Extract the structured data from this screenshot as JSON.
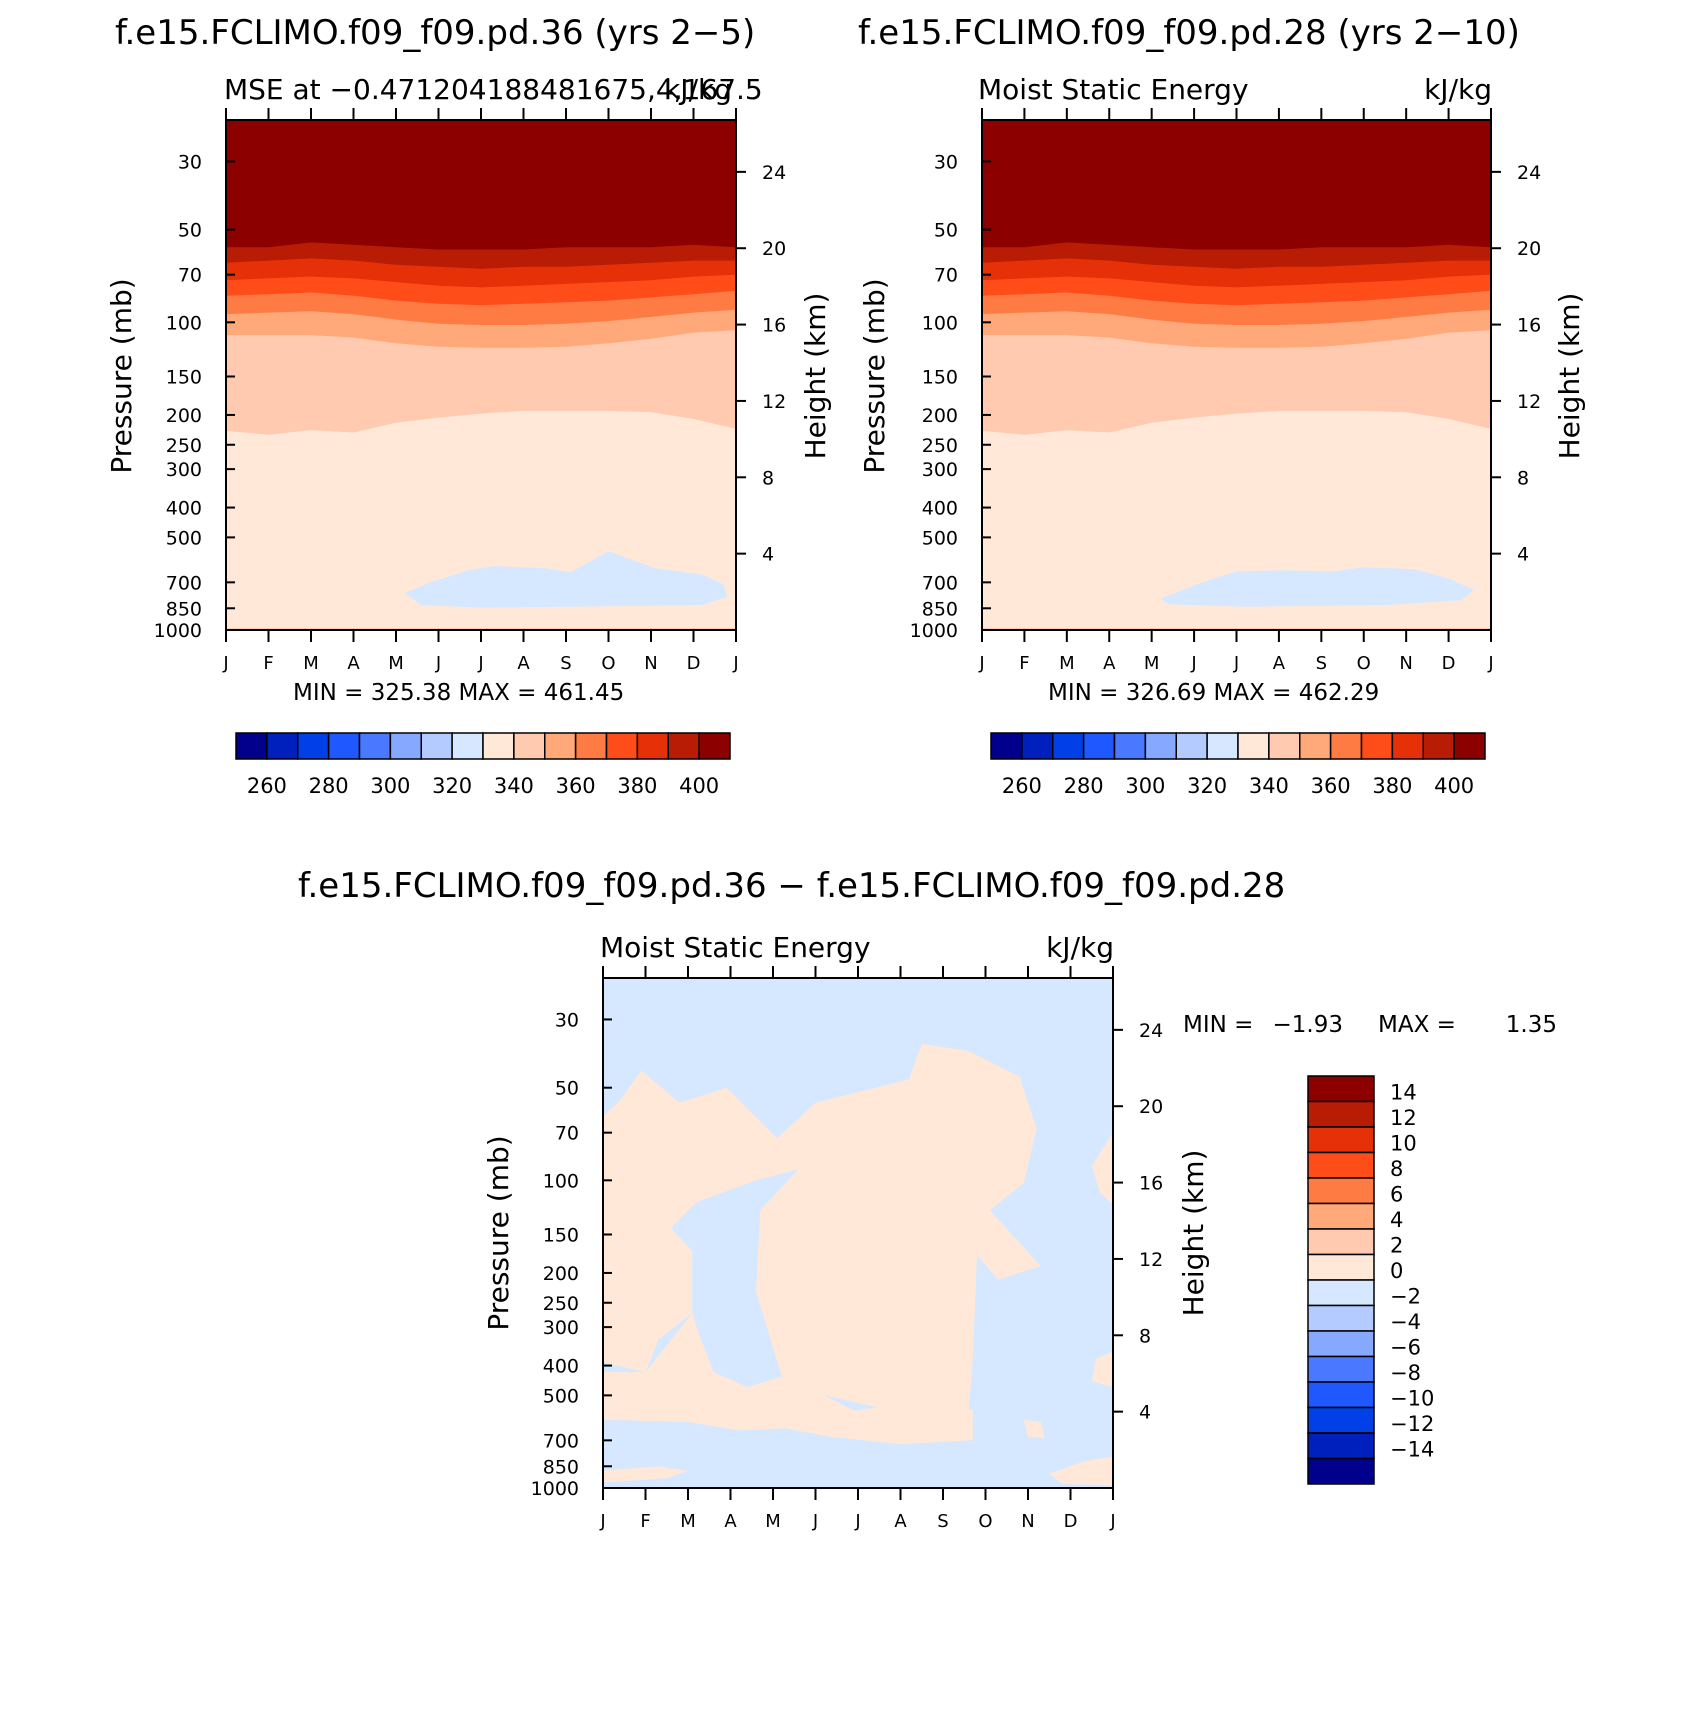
{
  "figure": {
    "background": "#ffffff"
  },
  "panels": [
    {
      "id": "p1",
      "title": "f.e15.FCLIMO.f09_f09.pd.36 (yrs 2−5)",
      "subtitle_left": "MSE at −0.471204188481675,4,167.5",
      "subtitle_right": "kJ/kg",
      "ylabel_left": "Pressure (mb)",
      "ylabel_right": "Height (km)",
      "stats": "MIN = 325.38 MAX = 461.45"
    },
    {
      "id": "p2",
      "title": "f.e15.FCLIMO.f09_f09.pd.28 (yrs 2−10)",
      "subtitle_left": "Moist Static Energy",
      "subtitle_right": "kJ/kg",
      "ylabel_left": "Pressure (mb)",
      "ylabel_right": "Height (km)",
      "stats": "MIN = 326.69 MAX = 462.29"
    },
    {
      "id": "p3",
      "title": "f.e15.FCLIMO.f09_f09.pd.36 − f.e15.FCLIMO.f09_f09.pd.28",
      "subtitle_left": "Moist Static Energy",
      "subtitle_right": "kJ/kg",
      "ylabel_left": "Pressure (mb)",
      "ylabel_right": "Height (km)",
      "stats_min_label": "MIN =",
      "stats_min": "−1.93",
      "stats_max_label": "MAX =",
      "stats_max": "1.35"
    }
  ],
  "chart_data": [
    {
      "type": "heatmap",
      "subtype": "filled-contour",
      "panel": "p1",
      "x_categories": [
        "J",
        "F",
        "M",
        "A",
        "M",
        "J",
        "J",
        "A",
        "S",
        "O",
        "N",
        "D",
        "J"
      ],
      "y_pressure_ticks": [
        "30",
        "50",
        "70",
        "100",
        "150",
        "200",
        "250",
        "300",
        "400",
        "500",
        "700",
        "850",
        "1000"
      ],
      "y_height_ticks": [
        "24",
        "20",
        "16",
        "12",
        "8",
        "4"
      ],
      "y_scale": "log-pressure",
      "colorbar_levels": [
        260,
        270,
        280,
        290,
        300,
        310,
        320,
        330,
        340,
        350,
        360,
        370,
        380,
        390,
        400
      ],
      "colorbar_labels": [
        "260",
        "280",
        "300",
        "320",
        "340",
        "360",
        "380",
        "400"
      ],
      "colorbar_colors": [
        "#00008c",
        "#0020bd",
        "#0040e6",
        "#2058ff",
        "#4a78ff",
        "#86a8ff",
        "#b4cbff",
        "#d6e8ff",
        "#ffe8d8",
        "#ffcab0",
        "#ffa87a",
        "#ff7b44",
        "#ff4d1a",
        "#e63008",
        "#b81c04",
        "#8c0000"
      ],
      "bands_top_pressure_mb": {
        "x": [
          0,
          1,
          2,
          3,
          4,
          5,
          6,
          7,
          8,
          9,
          10,
          11,
          12
        ],
        "b400": [
          57,
          57,
          55,
          56,
          57,
          58,
          58,
          58,
          57,
          57,
          57,
          56,
          57
        ],
        "b390": [
          64,
          63,
          62,
          63,
          65,
          66,
          67,
          66,
          66,
          65,
          64,
          63,
          63
        ],
        "b380": [
          73,
          72,
          71,
          72,
          74,
          76,
          77,
          76,
          75,
          74,
          73,
          71,
          70
        ],
        "b370": [
          82,
          81,
          80,
          82,
          85,
          87,
          88,
          87,
          86,
          85,
          83,
          81,
          79
        ],
        "b360": [
          94,
          93,
          92,
          94,
          98,
          101,
          102,
          102,
          101,
          99,
          96,
          93,
          91
        ],
        "b350": [
          110,
          110,
          110,
          112,
          117,
          120,
          121,
          121,
          120,
          117,
          113,
          108,
          106
        ],
        "b340": [
          225,
          232,
          224,
          228,
          212,
          204,
          198,
          194,
          194,
          194,
          196,
          206,
          222
        ],
        "b320_patch": "June-December near 700-800 mb"
      },
      "stats": {
        "min": 325.38,
        "max": 461.45
      }
    },
    {
      "type": "heatmap",
      "subtype": "filled-contour",
      "panel": "p2",
      "x_categories": [
        "J",
        "F",
        "M",
        "A",
        "M",
        "J",
        "J",
        "A",
        "S",
        "O",
        "N",
        "D",
        "J"
      ],
      "y_pressure_ticks": [
        "30",
        "50",
        "70",
        "100",
        "150",
        "200",
        "250",
        "300",
        "400",
        "500",
        "700",
        "850",
        "1000"
      ],
      "y_height_ticks": [
        "24",
        "20",
        "16",
        "12",
        "8",
        "4"
      ],
      "y_scale": "log-pressure",
      "colorbar_levels": [
        260,
        270,
        280,
        290,
        300,
        310,
        320,
        330,
        340,
        350,
        360,
        370,
        380,
        390,
        400
      ],
      "colorbar_labels": [
        "260",
        "280",
        "300",
        "320",
        "340",
        "360",
        "380",
        "400"
      ],
      "colorbar_colors": [
        "#00008c",
        "#0020bd",
        "#0040e6",
        "#2058ff",
        "#4a78ff",
        "#86a8ff",
        "#b4cbff",
        "#d6e8ff",
        "#ffe8d8",
        "#ffcab0",
        "#ffa87a",
        "#ff7b44",
        "#ff4d1a",
        "#e63008",
        "#b81c04",
        "#8c0000"
      ],
      "stats": {
        "min": 326.69,
        "max": 462.29
      }
    },
    {
      "type": "heatmap",
      "subtype": "filled-contour",
      "panel": "p3",
      "x_categories": [
        "J",
        "F",
        "M",
        "A",
        "M",
        "J",
        "J",
        "A",
        "S",
        "O",
        "N",
        "D",
        "J"
      ],
      "y_pressure_ticks": [
        "30",
        "50",
        "70",
        "100",
        "150",
        "200",
        "250",
        "300",
        "400",
        "500",
        "700",
        "850",
        "1000"
      ],
      "y_height_ticks": [
        "24",
        "20",
        "16",
        "12",
        "8",
        "4"
      ],
      "y_scale": "log-pressure",
      "colorbar_levels": [
        -14,
        -12,
        -10,
        -8,
        -6,
        -4,
        -2,
        0,
        2,
        4,
        6,
        8,
        10,
        12,
        14
      ],
      "colorbar_labels": [
        "−14",
        "−12",
        "−10",
        "−8",
        "−6",
        "−4",
        "−2",
        "0",
        "2",
        "4",
        "6",
        "8",
        "10",
        "12",
        "14"
      ],
      "colorbar_colors": [
        "#00008c",
        "#0020bd",
        "#0040e6",
        "#2058ff",
        "#4a78ff",
        "#86a8ff",
        "#b4cbff",
        "#d6e8ff",
        "#ffe8d8",
        "#ffcab0",
        "#ffa87a",
        "#ff7b44",
        "#ff4d1a",
        "#e63008",
        "#b81c04",
        "#8c0000"
      ],
      "filled_ranges": [
        "-2 to 0",
        "0 to 2"
      ],
      "stats": {
        "min": -1.93,
        "max": 1.35
      }
    }
  ]
}
